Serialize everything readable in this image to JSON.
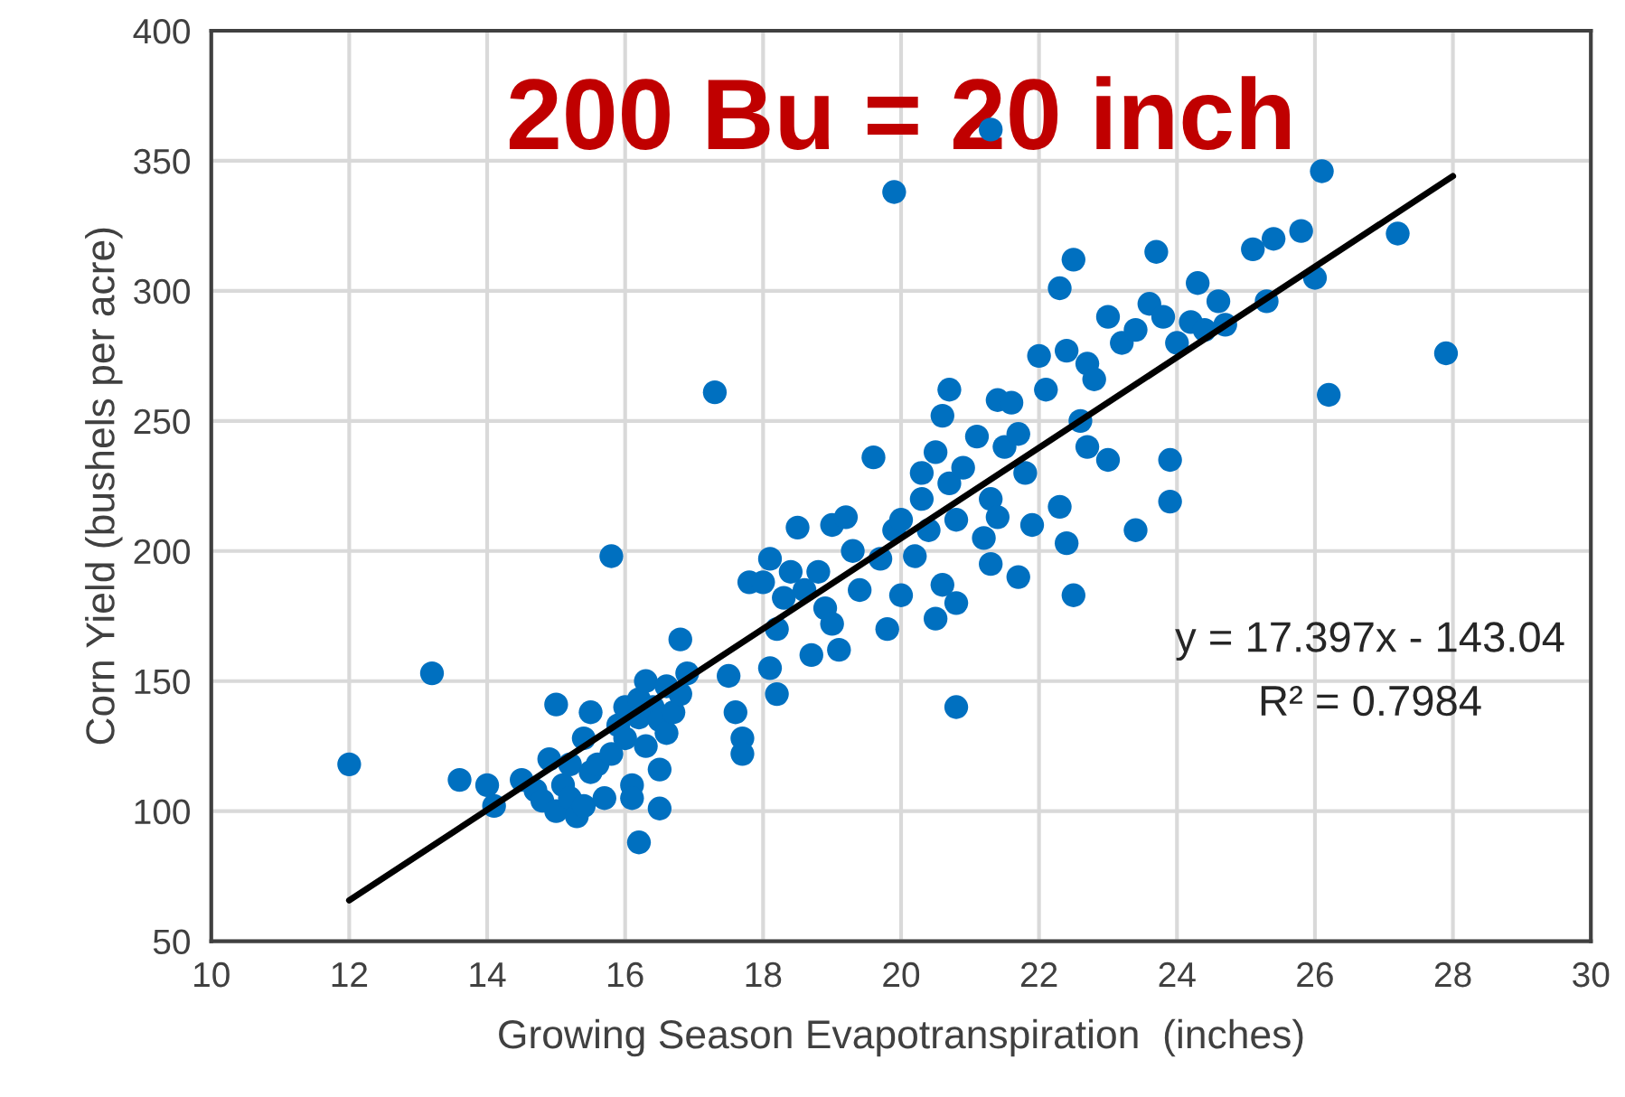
{
  "chart_data": {
    "type": "scatter",
    "title": "200 Bu = 20 inch",
    "xlabel": "Growing Season Evapotranspiration  (inches)",
    "ylabel": "Corn Yield (bushels per acre)",
    "annotations": [
      "y = 17.397x - 143.04",
      "R² = 0.7984"
    ],
    "xlim": [
      10,
      30
    ],
    "xticks": [
      10,
      12,
      14,
      16,
      18,
      20,
      22,
      24,
      26,
      28,
      30
    ],
    "ylim": [
      50,
      400
    ],
    "yticks": [
      50,
      100,
      150,
      200,
      250,
      300,
      350,
      400
    ],
    "grid": true,
    "series": [
      {
        "color": "#0070c0",
        "marker": "circle",
        "x": [
          12.0,
          13.2,
          13.6,
          14.0,
          14.1,
          15.8,
          17.3,
          19.9,
          21.3,
          26.1,
          27.2,
          27.9,
          26.2,
          16.2,
          20.8,
          22.5,
          14.5,
          14.7,
          14.8,
          14.9,
          15.0,
          15.0,
          15.1,
          15.2,
          15.2,
          15.3,
          15.4,
          15.4,
          15.5,
          15.5,
          15.6,
          15.7,
          15.8,
          15.9,
          16.0,
          16.0,
          16.1,
          16.1,
          16.2,
          16.2,
          16.3,
          16.3,
          16.4,
          16.5,
          16.5,
          16.5,
          16.6,
          16.6,
          16.7,
          16.8,
          16.8,
          16.9,
          17.5,
          17.6,
          17.7,
          17.7,
          17.8,
          18.0,
          18.1,
          18.1,
          18.2,
          18.2,
          18.3,
          18.4,
          18.5,
          18.6,
          18.7,
          18.8,
          18.9,
          19.0,
          19.0,
          19.1,
          19.2,
          19.3,
          19.4,
          19.6,
          19.7,
          19.8,
          19.9,
          20.0,
          20.0,
          20.2,
          20.3,
          20.3,
          20.4,
          20.5,
          20.5,
          20.6,
          20.6,
          20.7,
          20.7,
          20.8,
          20.8,
          20.9,
          21.1,
          21.2,
          21.3,
          21.3,
          21.4,
          21.4,
          21.5,
          21.6,
          21.7,
          21.7,
          21.8,
          21.9,
          22.0,
          22.1,
          22.3,
          22.3,
          22.4,
          22.4,
          22.5,
          22.6,
          22.7,
          22.7,
          22.8,
          23.0,
          23.0,
          23.2,
          23.4,
          23.4,
          23.6,
          23.7,
          23.8,
          23.9,
          23.9,
          24.0,
          24.2,
          24.3,
          24.4,
          24.6,
          24.7,
          25.1,
          25.3,
          25.4,
          25.8,
          26.0
        ],
        "values": [
          118,
          153,
          112,
          110,
          102,
          198,
          261,
          338,
          362,
          346,
          322,
          276,
          260,
          88,
          140,
          183,
          112,
          108,
          104,
          120,
          100,
          141,
          110,
          105,
          118,
          98,
          128,
          102,
          138,
          115,
          118,
          105,
          122,
          133,
          140,
          128,
          110,
          105,
          143,
          136,
          150,
          125,
          140,
          135,
          116,
          101,
          148,
          130,
          138,
          145,
          166,
          153,
          152,
          138,
          128,
          122,
          188,
          188,
          197,
          155,
          170,
          145,
          182,
          192,
          209,
          185,
          160,
          192,
          178,
          210,
          172,
          162,
          213,
          200,
          185,
          236,
          197,
          170,
          208,
          212,
          183,
          198,
          230,
          220,
          208,
          238,
          174,
          252,
          187,
          262,
          226,
          212,
          180,
          232,
          244,
          205,
          220,
          195,
          213,
          258,
          240,
          257,
          245,
          190,
          230,
          210,
          275,
          262,
          301,
          217,
          277,
          203,
          312,
          250,
          272,
          240,
          266,
          290,
          235,
          280,
          285,
          208,
          295,
          315,
          290,
          235,
          219,
          280,
          288,
          303,
          285,
          296,
          287,
          316,
          296,
          320,
          323,
          305
        ]
      },
      {
        "type": "line",
        "color": "#000000",
        "x": [
          12,
          28
        ],
        "values": [
          65.7,
          344.1
        ],
        "line_style": "solid"
      }
    ]
  }
}
